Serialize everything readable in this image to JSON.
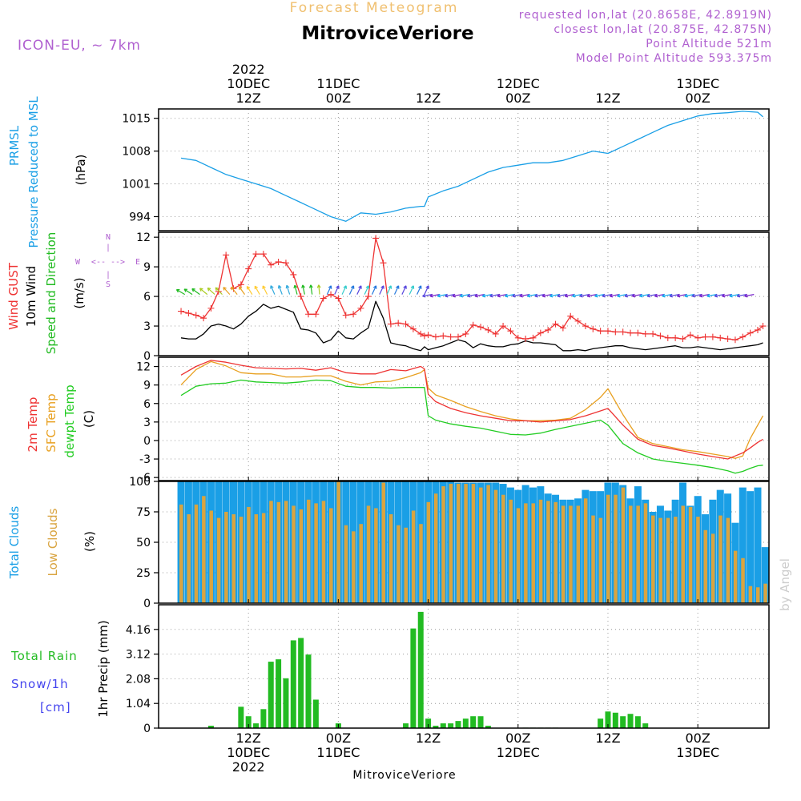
{
  "header": {
    "product_title": "Forecast Meteogram",
    "location": "MitroviceVeriore",
    "model": "ICON-EU, ~ 7km",
    "requested_coords": "requested lon,lat (20.8658E, 42.8919N)",
    "closest_coords": "closest lon,lat (20.875E, 42.875N)",
    "point_altitude": "Point Altitude 521m",
    "model_point_altitude": "Model Point Altitude 593.375m"
  },
  "footer": {
    "location": "MitroviceVeriore",
    "credit": "by Angel"
  },
  "colors": {
    "pressure": "#1a9fe6",
    "gust": "#ee3333",
    "wind": "#000000",
    "dir": "#22bb22",
    "temp2m": "#ee3333",
    "sfc": "#e8a020",
    "dew": "#22cc22",
    "total_clouds": "#1a9fe6",
    "low_clouds": "#d9a440",
    "precip": "#22bb22",
    "snow": "#4444ee",
    "header_purple": "#b060d0",
    "title_orange": "#f0c070"
  },
  "time_axis": {
    "top": [
      {
        "hour": 12,
        "lines": [
          "2022",
          "10DEC",
          "12Z"
        ]
      },
      {
        "hour": 24,
        "lines": [
          "11DEC",
          "00Z"
        ]
      },
      {
        "hour": 36,
        "lines": [
          "12Z"
        ]
      },
      {
        "hour": 48,
        "lines": [
          "12DEC",
          "00Z"
        ]
      },
      {
        "hour": 60,
        "lines": [
          "12Z"
        ]
      },
      {
        "hour": 72,
        "lines": [
          "13DEC",
          "00Z"
        ]
      }
    ],
    "bottom": [
      {
        "hour": 12,
        "lines": [
          "12Z",
          "10DEC",
          "2022"
        ]
      },
      {
        "hour": 24,
        "lines": [
          "00Z",
          "11DEC"
        ]
      },
      {
        "hour": 36,
        "lines": [
          "12Z"
        ]
      },
      {
        "hour": 48,
        "lines": [
          "00Z",
          "12DEC"
        ]
      },
      {
        "hour": 60,
        "lines": [
          "12Z"
        ]
      },
      {
        "hour": 72,
        "lines": [
          "00Z",
          "13DEC"
        ]
      }
    ]
  },
  "panels": {
    "pressure": {
      "labels": [
        "PRMSL",
        "Pressure Reduced to MSL"
      ],
      "unit": "(hPa)",
      "ticks": [
        "1015",
        "1008",
        "1001",
        "994"
      ]
    },
    "wind": {
      "labels": [
        "Wind GUST",
        "10m Wind",
        "Speed and Direction"
      ],
      "unit": "(m/s)",
      "ticks": [
        "12",
        "9",
        "6",
        "3",
        "0"
      ],
      "compass": {
        "n": "N",
        "s": "S",
        "w": "W",
        "e": "E"
      }
    },
    "temp": {
      "labels": [
        "2m Temp",
        "SFC Temp",
        "dewpt Temp"
      ],
      "unit": "(C)",
      "ticks": [
        "12",
        "9",
        "6",
        "3",
        "0",
        "-3",
        "-6"
      ]
    },
    "clouds": {
      "labels": [
        "Total Clouds",
        "Low Clouds"
      ],
      "unit": "(%)",
      "ticks": [
        "100",
        "75",
        "50",
        "25",
        "0"
      ]
    },
    "precip": {
      "labels": [
        "Total Rain",
        "Snow/1h",
        "[cm]"
      ],
      "unit": "1hr Precip (mm)",
      "ticks": [
        "4.16",
        "3.12",
        "2.08",
        "1.04",
        "0"
      ]
    }
  },
  "chart_data": [
    {
      "type": "line",
      "ylabel": "Pressure Reduced to MSL (hPa)",
      "ylim": [
        991,
        1017
      ],
      "x_hours": [
        3,
        5,
        7,
        9,
        11,
        13,
        15,
        17,
        19,
        21,
        23,
        25,
        27,
        29,
        31,
        33,
        35,
        35.5,
        36,
        38,
        40,
        42,
        44,
        46,
        48,
        50,
        52,
        54,
        56,
        58,
        60,
        62,
        64,
        66,
        68,
        70,
        72,
        74,
        76,
        78,
        80,
        80.7
      ],
      "series": [
        {
          "name": "PRMSL",
          "values": [
            1006.5,
            1006,
            1004.5,
            1003,
            1002,
            1001,
            1000,
            998.5,
            997,
            995.5,
            994,
            993,
            994.8,
            994.5,
            995,
            995.8,
            996.2,
            996.2,
            998.2,
            999.5,
            1000.5,
            1002,
            1003.5,
            1004.5,
            1005,
            1005.5,
            1005.5,
            1006,
            1007,
            1008,
            1007.5,
            1009,
            1010.5,
            1012,
            1013.5,
            1014.5,
            1015.5,
            1016,
            1016.2,
            1016.5,
            1016.3,
            1015.3
          ]
        }
      ]
    },
    {
      "type": "line",
      "ylabel": "(m/s)",
      "ylim": [
        0,
        12.5
      ],
      "x_hours": [
        3,
        4,
        5,
        6,
        7,
        8,
        9,
        10,
        11,
        12,
        13,
        14,
        15,
        16,
        17,
        18,
        19,
        20,
        21,
        22,
        23,
        24,
        25,
        26,
        27,
        28,
        29,
        30,
        31,
        32,
        33,
        34,
        35,
        35.5,
        36,
        37,
        38,
        39,
        40,
        41,
        42,
        43,
        44,
        45,
        46,
        47,
        48,
        49,
        50,
        51,
        52,
        53,
        54,
        55,
        56,
        57,
        58,
        59,
        60,
        61,
        62,
        63,
        64,
        65,
        66,
        67,
        68,
        69,
        70,
        71,
        72,
        73,
        74,
        75,
        76,
        77,
        78,
        79,
        80,
        80.7
      ],
      "series": [
        {
          "name": "Wind GUST",
          "values": [
            4.5,
            4.3,
            4.1,
            3.8,
            4.8,
            6.5,
            10.2,
            6.8,
            7.2,
            8.8,
            10.3,
            10.3,
            9.2,
            9.5,
            9.4,
            8.2,
            6,
            4.2,
            4.2,
            5.8,
            6.2,
            5.8,
            4.1,
            4.2,
            4.8,
            6,
            11.9,
            9.4,
            3.2,
            3.3,
            3.2,
            2.7,
            2.2,
            2,
            2.1,
            1.9,
            2,
            1.9,
            1.9,
            2.2,
            3.1,
            2.9,
            2.6,
            2.2,
            3,
            2.5,
            1.8,
            1.7,
            1.8,
            2.3,
            2.6,
            3.2,
            2.8,
            4,
            3.5,
            3,
            2.7,
            2.5,
            2.5,
            2.4,
            2.4,
            2.3,
            2.3,
            2.2,
            2.2,
            2,
            1.8,
            1.8,
            1.7,
            2.1,
            1.8,
            1.9,
            1.9,
            1.8,
            1.7,
            1.6,
            1.9,
            2.3,
            2.6,
            3
          ]
        },
        {
          "name": "10m Wind",
          "values": [
            1.8,
            1.7,
            1.7,
            2.2,
            3,
            3.2,
            3,
            2.7,
            3.2,
            4,
            4.5,
            5.2,
            4.8,
            5,
            4.7,
            4.4,
            2.7,
            2.6,
            2.3,
            1.3,
            1.6,
            2.5,
            1.8,
            1.7,
            2.3,
            2.8,
            5.5,
            3.8,
            1.3,
            1.1,
            1,
            0.7,
            0.5,
            0.9,
            0.6,
            0.8,
            1,
            1.3,
            1.6,
            1.4,
            0.8,
            1.2,
            1,
            0.9,
            0.9,
            1.1,
            1.2,
            1.5,
            1.3,
            1.3,
            1.2,
            1.1,
            0.5,
            0.5,
            0.6,
            0.5,
            0.7,
            0.8,
            0.9,
            1,
            1,
            0.8,
            0.7,
            0.6,
            0.7,
            0.8,
            0.9,
            1,
            0.8,
            0.8,
            0.9,
            0.8,
            0.7,
            0.6,
            0.7,
            0.8,
            0.9,
            1,
            1.1,
            1.3
          ]
        }
      ]
    },
    {
      "type": "line",
      "ylabel": "(C)",
      "ylim": [
        -6.5,
        13.5
      ],
      "x_hours": [
        3,
        5,
        7,
        9,
        11,
        13,
        15,
        17,
        19,
        21,
        23,
        25,
        27,
        29,
        31,
        33,
        35,
        35.5,
        36,
        37,
        39,
        41,
        43,
        45,
        47,
        49,
        51,
        53,
        55,
        57,
        59,
        60,
        62,
        64,
        66,
        68,
        70,
        72,
        74,
        76,
        77,
        78,
        79,
        80,
        80.7
      ],
      "series": [
        {
          "name": "2m Temp",
          "values": [
            10.6,
            12,
            13,
            12.7,
            12.2,
            11.8,
            11.7,
            11.6,
            11.7,
            11.4,
            11.8,
            11,
            10.8,
            10.8,
            11.5,
            11.3,
            12,
            11.6,
            7.5,
            6.3,
            5.2,
            4.5,
            4,
            3.6,
            3.2,
            3.2,
            3,
            3.2,
            3.4,
            4,
            4.8,
            5.2,
            2.5,
            0.2,
            -0.8,
            -1.2,
            -1.7,
            -2.2,
            -2.6,
            -3,
            -2.5,
            -2,
            -1.2,
            -0.3,
            0.2
          ]
        },
        {
          "name": "SFC Temp",
          "values": [
            9,
            11.5,
            12.8,
            12.1,
            11,
            10.8,
            10.8,
            10.3,
            10.3,
            10.5,
            10.5,
            9.6,
            9,
            9.5,
            9.6,
            10.2,
            11,
            11.5,
            8.5,
            7.4,
            6.5,
            5.5,
            4.7,
            4,
            3.5,
            3.2,
            3.2,
            3.3,
            3.6,
            5,
            7,
            8.4,
            4.2,
            0.5,
            -0.5,
            -1,
            -1.5,
            -1.8,
            -2.2,
            -2.6,
            -2.9,
            -2.5,
            0.3,
            2.5,
            4
          ]
        },
        {
          "name": "dewpt Temp",
          "values": [
            7.3,
            8.8,
            9.2,
            9.3,
            9.8,
            9.5,
            9.4,
            9.3,
            9.5,
            9.8,
            9.7,
            8.8,
            8.6,
            8.6,
            8.5,
            8.6,
            8.6,
            8.6,
            4,
            3.3,
            2.7,
            2.3,
            2,
            1.5,
            1,
            0.9,
            1.2,
            1.8,
            2.3,
            2.8,
            3.3,
            2.5,
            -0.5,
            -2,
            -3,
            -3.4,
            -3.7,
            -4,
            -4.4,
            -4.9,
            -5.3,
            -5,
            -4.5,
            -4.1,
            -4
          ]
        }
      ]
    },
    {
      "type": "bar",
      "ylabel": "(%)",
      "ylim": [
        0,
        100
      ],
      "x_hours": [
        3,
        4,
        5,
        6,
        7,
        8,
        9,
        10,
        11,
        12,
        13,
        14,
        15,
        16,
        17,
        18,
        19,
        20,
        21,
        22,
        23,
        24,
        25,
        26,
        27,
        28,
        29,
        30,
        31,
        32,
        33,
        34,
        35,
        36,
        37,
        38,
        39,
        40,
        41,
        42,
        43,
        44,
        45,
        46,
        47,
        48,
        49,
        50,
        51,
        52,
        53,
        54,
        55,
        56,
        57,
        58,
        59,
        60,
        61,
        62,
        63,
        64,
        65,
        66,
        67,
        68,
        69,
        70,
        71,
        72,
        73,
        74,
        75,
        76,
        77,
        78,
        79,
        80,
        81
      ],
      "series": [
        {
          "name": "Total Clouds",
          "values": [
            100,
            100,
            100,
            100,
            100,
            100,
            100,
            100,
            100,
            100,
            100,
            100,
            100,
            100,
            100,
            100,
            100,
            100,
            100,
            100,
            100,
            100,
            100,
            100,
            100,
            100,
            100,
            100,
            100,
            100,
            100,
            100,
            100,
            100,
            100,
            100,
            100,
            99,
            99,
            99,
            99,
            99,
            99,
            98,
            95,
            93,
            97,
            95,
            96,
            90,
            89,
            85,
            85,
            86,
            93,
            92,
            92,
            99,
            99,
            97,
            86,
            96,
            85,
            75,
            80,
            76,
            85,
            99,
            80,
            88,
            73,
            85,
            93,
            90,
            66,
            95,
            92,
            95,
            46
          ]
        },
        {
          "name": "Low Clouds",
          "values": [
            81,
            73,
            81,
            88,
            76,
            70,
            75,
            73,
            71,
            79,
            73,
            74,
            84,
            83,
            84,
            80,
            77,
            85,
            82,
            84,
            78,
            100,
            64,
            59,
            65,
            80,
            78,
            99,
            73,
            64,
            62,
            76,
            65,
            83,
            90,
            96,
            98,
            98,
            98,
            98,
            95,
            97,
            93,
            89,
            85,
            78,
            82,
            82,
            85,
            84,
            83,
            80,
            80,
            80,
            86,
            72,
            70,
            89,
            89,
            95,
            80,
            80,
            82,
            72,
            70,
            70,
            71,
            80,
            79,
            71,
            60,
            57,
            72,
            70,
            43,
            37,
            14,
            13,
            16
          ]
        }
      ]
    },
    {
      "type": "bar",
      "ylabel": "1hr Precip (mm)",
      "ylim": [
        0,
        5.2
      ],
      "x_hours": [
        7,
        11,
        12,
        13,
        14,
        15,
        16,
        17,
        18,
        19,
        20,
        21,
        24,
        33,
        34,
        35,
        36,
        37,
        38,
        39,
        40,
        41,
        42,
        43,
        44,
        49,
        50,
        51,
        52,
        53,
        59,
        60,
        61,
        62,
        63,
        64,
        65
      ],
      "series": [
        {
          "name": "Total Rain",
          "values": [
            0.1,
            0.9,
            0.5,
            0.2,
            0.8,
            2.8,
            2.9,
            2.1,
            3.7,
            3.8,
            3.1,
            1.2,
            0.2,
            0.2,
            4.2,
            4.9,
            0.4,
            0.1,
            0.2,
            0.2,
            0.3,
            0.4,
            0.5,
            0.5,
            0.1,
            0.02,
            0.02,
            0.02,
            0.02,
            0.02,
            0.4,
            0.7,
            0.65,
            0.5,
            0.6,
            0.5,
            0.2
          ]
        }
      ]
    }
  ]
}
